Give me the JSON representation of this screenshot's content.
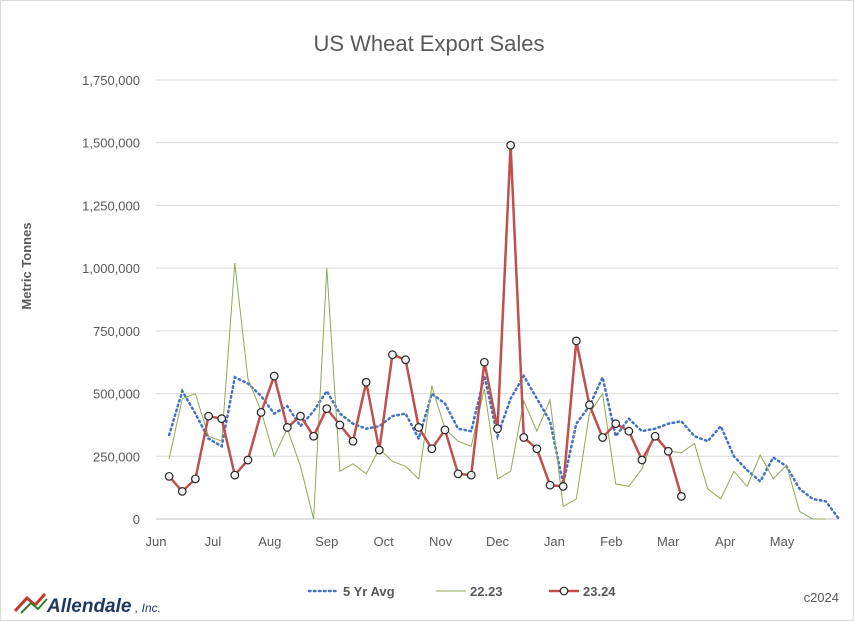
{
  "chart_data": {
    "type": "line",
    "title": "US Wheat Export Sales",
    "ylabel": "Metric Tonnes",
    "xlabel": "",
    "ylim": [
      0,
      1750000
    ],
    "y_ticks": [
      "0",
      "250,000",
      "500,000",
      "750,000",
      "1,000,000",
      "1,250,000",
      "1,500,000",
      "1,750,000"
    ],
    "y_tick_values": [
      0,
      250000,
      500000,
      750000,
      1000000,
      1250000,
      1500000,
      1750000
    ],
    "x_months": [
      "Jun",
      "Jul",
      "Aug",
      "Sep",
      "Oct",
      "Nov",
      "Dec",
      "Jan",
      "Feb",
      "Mar",
      "Apr",
      "May"
    ],
    "x_week_range": [
      0,
      52
    ],
    "grid": "horizontal",
    "legend_position": "bottom",
    "series": [
      {
        "name": "5 Yr Avg",
        "color": "#4472c4",
        "style": "dotted",
        "weeks": [
          1,
          2,
          3,
          4,
          5,
          6,
          7,
          8,
          9,
          10,
          11,
          12,
          13,
          14,
          15,
          16,
          17,
          18,
          19,
          20,
          21,
          22,
          23,
          24,
          25,
          26,
          27,
          28,
          29,
          30,
          31,
          32,
          33,
          34,
          35,
          36,
          37,
          38,
          39,
          40,
          41,
          42,
          43,
          44,
          45,
          46,
          47,
          48,
          49,
          50,
          51,
          52
        ],
        "values": [
          335000,
          510000,
          420000,
          320000,
          290000,
          565000,
          540000,
          490000,
          420000,
          450000,
          370000,
          430000,
          510000,
          420000,
          380000,
          360000,
          370000,
          410000,
          420000,
          320000,
          500000,
          460000,
          360000,
          350000,
          570000,
          330000,
          480000,
          570000,
          480000,
          390000,
          140000,
          380000,
          450000,
          565000,
          330000,
          400000,
          350000,
          360000,
          380000,
          390000,
          330000,
          310000,
          370000,
          250000,
          195000,
          150000,
          245000,
          210000,
          120000,
          80000,
          70000,
          0
        ]
      },
      {
        "name": "22.23",
        "color": "#8faa54",
        "style": "solid-thin",
        "weeks": [
          1,
          2,
          3,
          4,
          5,
          6,
          7,
          8,
          9,
          10,
          11,
          12,
          13,
          14,
          15,
          16,
          17,
          18,
          19,
          20,
          21,
          22,
          23,
          24,
          25,
          26,
          27,
          28,
          29,
          30,
          31,
          32,
          33,
          34,
          35,
          36,
          37,
          38,
          39,
          40,
          41,
          42,
          43,
          44,
          45,
          46,
          47,
          48,
          49,
          50,
          51
        ],
        "values": [
          240000,
          480000,
          500000,
          330000,
          310000,
          1020000,
          560000,
          430000,
          250000,
          360000,
          210000,
          0,
          1000000,
          190000,
          220000,
          180000,
          280000,
          230000,
          210000,
          160000,
          530000,
          360000,
          310000,
          290000,
          520000,
          160000,
          190000,
          470000,
          350000,
          475000,
          50000,
          80000,
          420000,
          500000,
          140000,
          130000,
          200000,
          340000,
          270000,
          265000,
          300000,
          120000,
          80000,
          190000,
          130000,
          255000,
          160000,
          215000,
          30000,
          0,
          0
        ]
      },
      {
        "name": "23.24",
        "color": "#c0504d",
        "style": "solid-marker",
        "weeks": [
          1,
          2,
          3,
          4,
          5,
          6,
          7,
          8,
          9,
          10,
          11,
          12,
          13,
          14,
          15,
          16,
          17,
          18,
          19,
          20,
          21,
          22,
          23,
          24,
          25,
          26,
          27,
          28,
          29,
          30,
          31,
          32,
          33,
          34,
          35,
          36,
          37,
          38,
          39,
          40,
          41,
          42,
          43,
          44
        ],
        "values": [
          170000,
          110000,
          160000,
          410000,
          400000,
          175000,
          235000,
          425000,
          570000,
          365000,
          410000,
          330000,
          440000,
          375000,
          310000,
          545000,
          275000,
          655000,
          635000,
          365000,
          280000,
          355000,
          180000,
          175000,
          625000,
          360000,
          1490000,
          325000,
          280000,
          135000,
          130000,
          710000,
          455000,
          325000,
          380000,
          350000,
          235000,
          330000,
          270000,
          90000,
          null,
          null,
          null,
          null
        ]
      }
    ],
    "branding": {
      "logo_text": "Allendale",
      "logo_suffix": ", Inc.",
      "copyright": "c2024"
    }
  }
}
